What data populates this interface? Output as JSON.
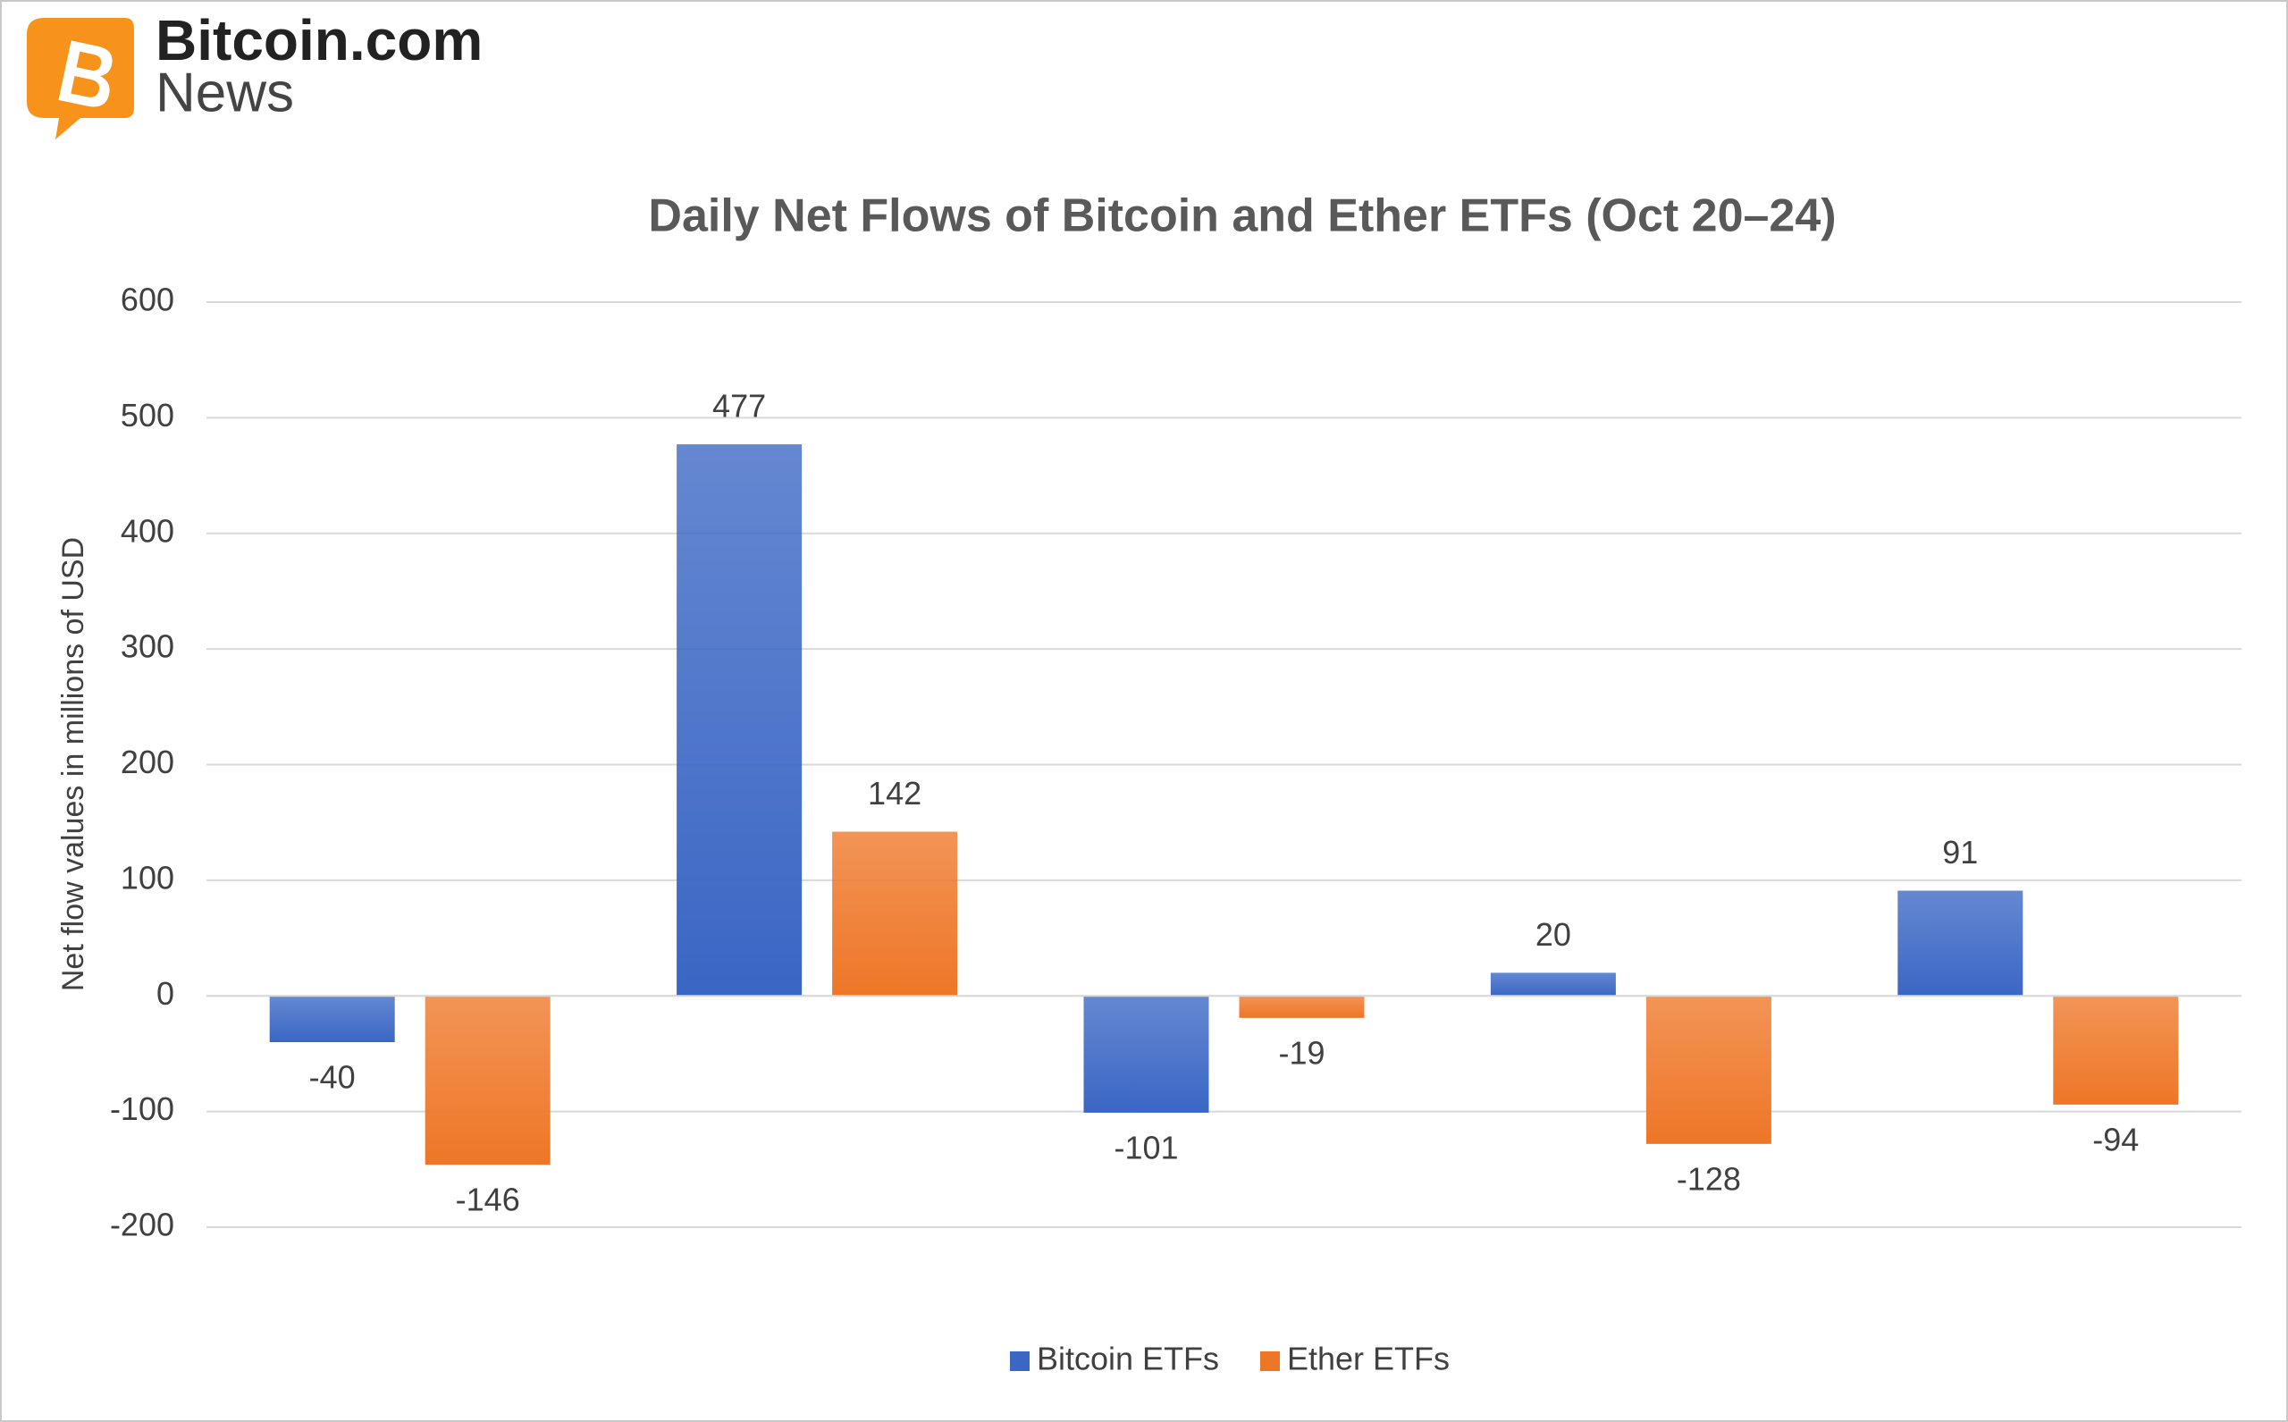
{
  "logo": {
    "name": "Bitcoin.com",
    "subtitle": "News"
  },
  "chart_data": {
    "type": "bar",
    "title": "Daily Net Flows of Bitcoin and Ether ETFs (Oct 20–24)",
    "y_label": "Net flow values in millions of USD",
    "categories": [
      null,
      null,
      null,
      null,
      null
    ],
    "series": [
      {
        "name": "Bitcoin ETFs",
        "color": "#3a66c4",
        "values": [
          -40,
          477,
          -101,
          20,
          91
        ]
      },
      {
        "name": "Ether ETFs",
        "color": "#ee7627",
        "values": [
          -146,
          142,
          -19,
          -128,
          -94
        ]
      }
    ],
    "ylim": [
      -200,
      600
    ],
    "yticks": [
      -200,
      -100,
      0,
      100,
      200,
      300,
      400,
      500,
      600
    ],
    "grid": true,
    "legend": "bottom"
  }
}
